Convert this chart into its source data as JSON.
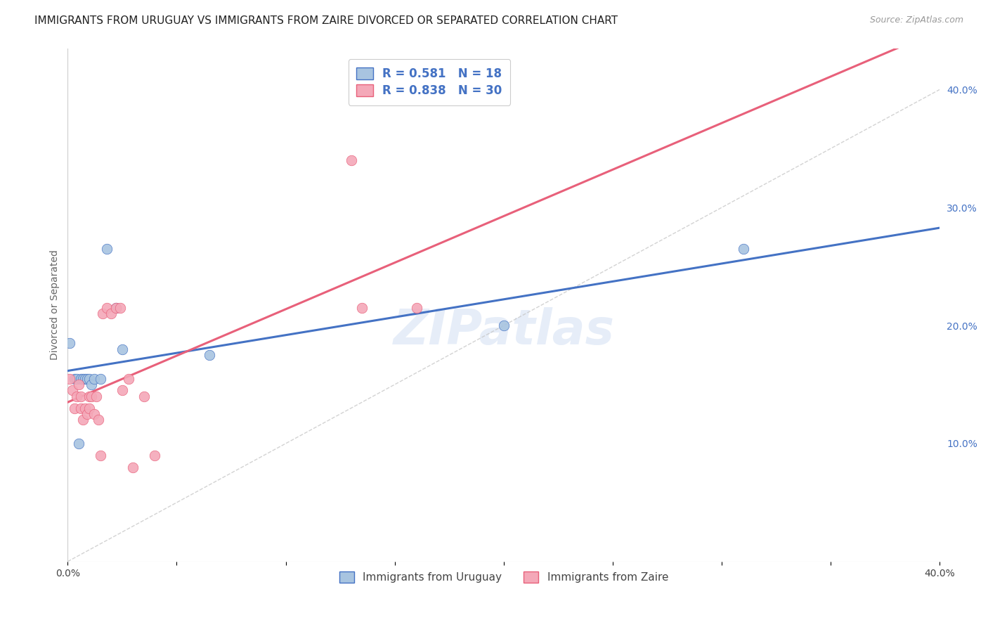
{
  "title": "IMMIGRANTS FROM URUGUAY VS IMMIGRANTS FROM ZAIRE DIVORCED OR SEPARATED CORRELATION CHART",
  "source": "Source: ZipAtlas.com",
  "ylabel": "Divorced or Separated",
  "xlim": [
    0.0,
    0.4
  ],
  "ylim": [
    0.0,
    0.435
  ],
  "x_ticks": [
    0.0,
    0.05,
    0.1,
    0.15,
    0.2,
    0.25,
    0.3,
    0.35,
    0.4
  ],
  "y_ticks_right": [
    0.1,
    0.2,
    0.3,
    0.4
  ],
  "y_tick_labels_right": [
    "10.0%",
    "20.0%",
    "30.0%",
    "40.0%"
  ],
  "legend_label1": "R = 0.581   N = 18",
  "legend_label2": "R = 0.838   N = 30",
  "legend_bottom1": "Immigrants from Uruguay",
  "legend_bottom2": "Immigrants from Zaire",
  "color_uruguay": "#a8c4e0",
  "color_zaire": "#f4a8b8",
  "color_line_uruguay": "#4472c4",
  "color_line_zaire": "#e8607a",
  "color_diag": "#c8c8c8",
  "watermark": "ZIPatlas",
  "uruguay_x": [
    0.001,
    0.003,
    0.004,
    0.005,
    0.006,
    0.007,
    0.008,
    0.009,
    0.01,
    0.011,
    0.012,
    0.015,
    0.018,
    0.022,
    0.025,
    0.065,
    0.2,
    0.31
  ],
  "uruguay_y": [
    0.185,
    0.155,
    0.155,
    0.1,
    0.155,
    0.155,
    0.155,
    0.155,
    0.155,
    0.15,
    0.155,
    0.155,
    0.265,
    0.215,
    0.18,
    0.175,
    0.2,
    0.265
  ],
  "zaire_x": [
    0.001,
    0.002,
    0.003,
    0.004,
    0.005,
    0.006,
    0.006,
    0.007,
    0.008,
    0.009,
    0.01,
    0.01,
    0.011,
    0.012,
    0.013,
    0.014,
    0.015,
    0.016,
    0.018,
    0.02,
    0.022,
    0.024,
    0.025,
    0.028,
    0.03,
    0.035,
    0.04,
    0.13,
    0.135,
    0.16
  ],
  "zaire_y": [
    0.155,
    0.145,
    0.13,
    0.14,
    0.15,
    0.13,
    0.14,
    0.12,
    0.13,
    0.125,
    0.14,
    0.13,
    0.14,
    0.125,
    0.14,
    0.12,
    0.09,
    0.21,
    0.215,
    0.21,
    0.215,
    0.215,
    0.145,
    0.155,
    0.08,
    0.14,
    0.09,
    0.34,
    0.215,
    0.215
  ],
  "title_fontsize": 11,
  "source_fontsize": 9,
  "axis_label_fontsize": 10,
  "tick_fontsize": 10
}
